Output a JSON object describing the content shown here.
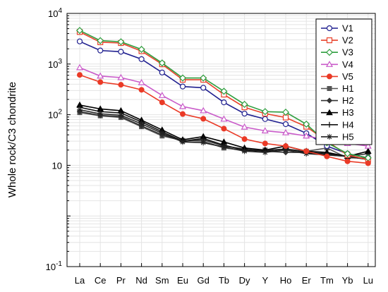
{
  "chart_data": {
    "type": "line",
    "yscale": "log",
    "ylabel": "Whole rock/C3 chondrite",
    "xlabel": "",
    "ylim": [
      0.1,
      10000
    ],
    "y_ticks": [
      {
        "value": 0.1,
        "base": "10",
        "exp": "-1"
      },
      {
        "value": 10,
        "base": "10",
        "exp": ""
      },
      {
        "value": 100,
        "base": "10",
        "exp": "2"
      },
      {
        "value": 1000,
        "base": "10",
        "exp": "3"
      },
      {
        "value": 10000,
        "base": "10",
        "exp": "4"
      }
    ],
    "categories": [
      "La",
      "Ce",
      "Pr",
      "Nd",
      "Sm",
      "Eu",
      "Gd",
      "Tb",
      "Dy",
      "Y",
      "Ho",
      "Er",
      "Tm",
      "Yb",
      "Lu"
    ],
    "grid": true,
    "legend_position": "top-right",
    "series": [
      {
        "name": "V1",
        "color": "#1f1f8f",
        "marker": "circle-open",
        "values": [
          2800,
          1850,
          1750,
          1250,
          680,
          360,
          340,
          175,
          105,
          82,
          65,
          43,
          24,
          17,
          14
        ]
      },
      {
        "name": "V2",
        "color": "#e8412a",
        "marker": "square-open",
        "values": [
          4300,
          2700,
          2600,
          1800,
          990,
          490,
          490,
          250,
          140,
          105,
          88,
          58,
          30,
          16,
          13
        ]
      },
      {
        "name": "V3",
        "color": "#2e9e3e",
        "marker": "diamond-open",
        "values": [
          4600,
          2900,
          2750,
          1950,
          1050,
          530,
          530,
          290,
          160,
          115,
          112,
          65,
          28,
          17,
          14
        ]
      },
      {
        "name": "V4",
        "color": "#c95ac9",
        "marker": "triangle-open",
        "values": [
          850,
          580,
          540,
          430,
          240,
          145,
          120,
          82,
          57,
          48,
          44,
          38,
          32,
          27,
          24
        ]
      },
      {
        "name": "V5",
        "color": "#ea3a26",
        "marker": "circle-filled",
        "values": [
          610,
          440,
          390,
          310,
          175,
          103,
          83,
          53,
          33,
          27,
          24,
          19,
          15,
          12,
          11
        ]
      },
      {
        "name": "H1",
        "color": "#555555",
        "marker": "square-filled",
        "values": [
          110,
          95,
          88,
          58,
          38,
          31,
          30,
          22,
          20,
          20,
          21,
          19,
          22,
          14,
          14
        ]
      },
      {
        "name": "H2",
        "color": "#333333",
        "marker": "diamond-filled",
        "values": [
          115,
          97,
          92,
          60,
          40,
          30,
          32,
          24,
          21,
          19,
          18,
          18,
          16,
          15,
          17
        ]
      },
      {
        "name": "H3",
        "color": "#000000",
        "marker": "triangle-filled",
        "values": [
          155,
          130,
          120,
          78,
          50,
          32,
          37,
          29,
          22,
          20,
          24,
          19,
          18,
          15,
          19
        ]
      },
      {
        "name": "H4",
        "color": "#111111",
        "marker": "plus",
        "values": [
          140,
          115,
          108,
          72,
          46,
          30,
          34,
          25,
          20,
          19,
          21,
          18,
          17,
          15,
          13
        ]
      },
      {
        "name": "H5",
        "color": "#222222",
        "marker": "star",
        "values": [
          125,
          104,
          98,
          66,
          43,
          29,
          28,
          23,
          19,
          18,
          20,
          17,
          16,
          15,
          13
        ]
      }
    ]
  }
}
